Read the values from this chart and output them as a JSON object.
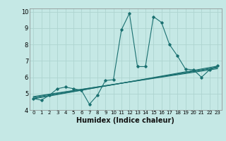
{
  "xlabel": "Humidex (Indice chaleur)",
  "background_color": "#c5e8e5",
  "grid_color": "#aed4d0",
  "line_color": "#1a7070",
  "xlim": [
    -0.5,
    23.5
  ],
  "ylim": [
    4,
    10.2
  ],
  "yticks": [
    4,
    5,
    6,
    7,
    8,
    9,
    10
  ],
  "xticks": [
    0,
    1,
    2,
    3,
    4,
    5,
    6,
    7,
    8,
    9,
    10,
    11,
    12,
    13,
    14,
    15,
    16,
    17,
    18,
    19,
    20,
    21,
    22,
    23
  ],
  "series": [
    [
      0,
      4.7
    ],
    [
      1,
      4.6
    ],
    [
      2,
      4.9
    ],
    [
      3,
      5.3
    ],
    [
      4,
      5.4
    ],
    [
      5,
      5.3
    ],
    [
      6,
      5.2
    ],
    [
      7,
      4.35
    ],
    [
      8,
      4.9
    ],
    [
      9,
      5.8
    ],
    [
      10,
      5.85
    ],
    [
      11,
      8.9
    ],
    [
      12,
      9.9
    ],
    [
      13,
      6.65
    ],
    [
      14,
      6.65
    ],
    [
      15,
      9.7
    ],
    [
      16,
      9.35
    ],
    [
      17,
      8.0
    ],
    [
      18,
      7.3
    ],
    [
      19,
      6.5
    ],
    [
      20,
      6.45
    ],
    [
      21,
      6.0
    ],
    [
      22,
      6.45
    ],
    [
      23,
      6.7
    ]
  ],
  "regression_lines": [
    {
      "x0": 0,
      "y0": 4.72,
      "x1": 23,
      "y1": 6.62
    },
    {
      "x0": 0,
      "y0": 4.78,
      "x1": 23,
      "y1": 6.58
    },
    {
      "x0": 0,
      "y0": 4.68,
      "x1": 23,
      "y1": 6.68
    },
    {
      "x0": 0,
      "y0": 4.82,
      "x1": 23,
      "y1": 6.52
    }
  ],
  "xlabel_fontsize": 7,
  "tick_fontsize_x": 5,
  "tick_fontsize_y": 6
}
